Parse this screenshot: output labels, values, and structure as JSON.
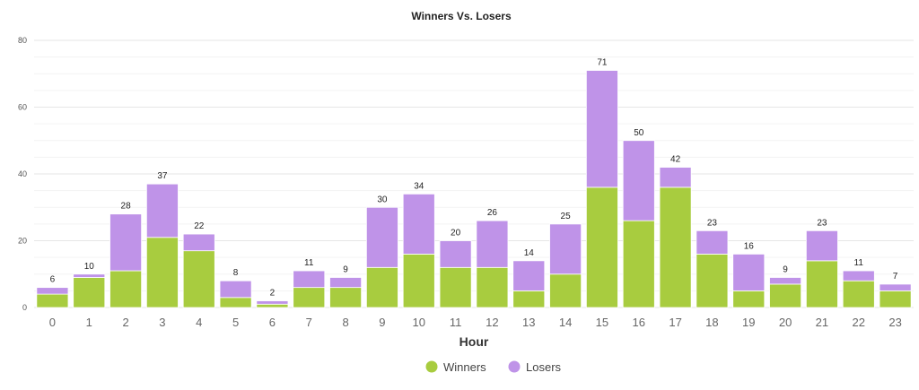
{
  "chart_data": {
    "type": "bar",
    "stacked": true,
    "title": "Winners Vs. Losers",
    "xlabel": "Hour",
    "ylabel": "",
    "ylim": [
      0,
      80
    ],
    "yticks": [
      0,
      20,
      40,
      60,
      80
    ],
    "grid": true,
    "legend_position": "bottom-center",
    "categories": [
      "0",
      "1",
      "2",
      "3",
      "4",
      "5",
      "6",
      "7",
      "8",
      "9",
      "10",
      "11",
      "12",
      "13",
      "14",
      "15",
      "16",
      "17",
      "18",
      "19",
      "20",
      "21",
      "22",
      "23"
    ],
    "series": [
      {
        "name": "Winners",
        "color": "#a8cc3f",
        "values": [
          4,
          9,
          11,
          21,
          17,
          3,
          1,
          6,
          6,
          12,
          16,
          12,
          12,
          5,
          10,
          36,
          26,
          36,
          16,
          5,
          7,
          14,
          8,
          5
        ]
      },
      {
        "name": "Losers",
        "color": "#bf93e8",
        "values": [
          2,
          1,
          17,
          16,
          5,
          5,
          1,
          5,
          3,
          18,
          18,
          8,
          14,
          9,
          15,
          35,
          24,
          6,
          7,
          11,
          2,
          9,
          3,
          2
        ]
      }
    ],
    "totals": [
      6,
      10,
      28,
      37,
      22,
      8,
      2,
      11,
      9,
      30,
      34,
      20,
      26,
      14,
      25,
      71,
      50,
      42,
      23,
      16,
      9,
      23,
      11,
      7
    ]
  }
}
